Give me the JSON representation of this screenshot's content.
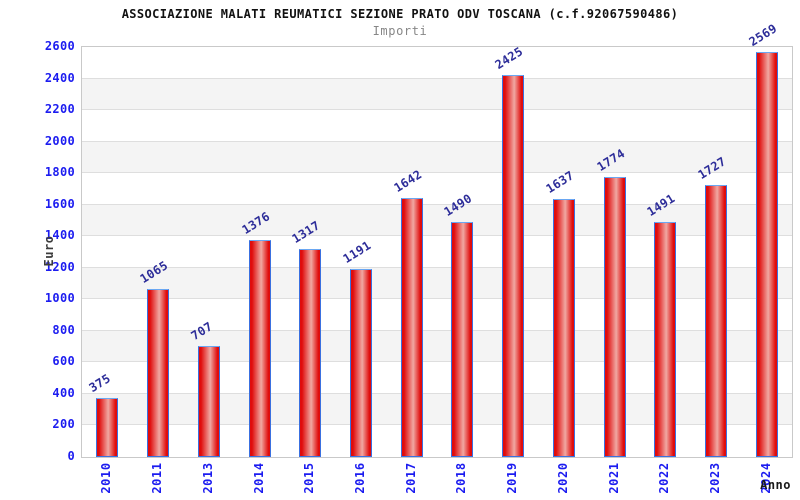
{
  "chart_data": {
    "type": "bar",
    "title": "ASSOCIAZIONE MALATI REUMATICI SEZIONE PRATO ODV TOSCANA (c.f.92067590486)",
    "subtitle": "Importi",
    "xlabel": "Anno",
    "ylabel": "Euro",
    "categories": [
      "2010",
      "2011",
      "2013",
      "2014",
      "2015",
      "2016",
      "2017",
      "2018",
      "2019",
      "2020",
      "2021",
      "2022",
      "2023",
      "2024"
    ],
    "values": [
      375,
      1065,
      707,
      1376,
      1317,
      1191,
      1642,
      1490,
      2425,
      1637,
      1774,
      1491,
      1727,
      2569
    ],
    "ylim": [
      0,
      2600
    ],
    "ytick_step": 200,
    "grid": true,
    "legend": "none",
    "colors": {
      "bar_edge": "#e00c0c",
      "bar_center": "#f0a8a2",
      "bar_border": "#3a70e0",
      "bar_border_top": "#6aa7f2",
      "tick_label": "#1c1cf0",
      "value_label": "#2d2d99",
      "band_gray": "#f4f4f4",
      "gridline": "#dedede",
      "plot_border": "#c9c9c9",
      "title": "#111111",
      "subtitle": "#878787",
      "axis_title": "#3c3c3c"
    }
  }
}
